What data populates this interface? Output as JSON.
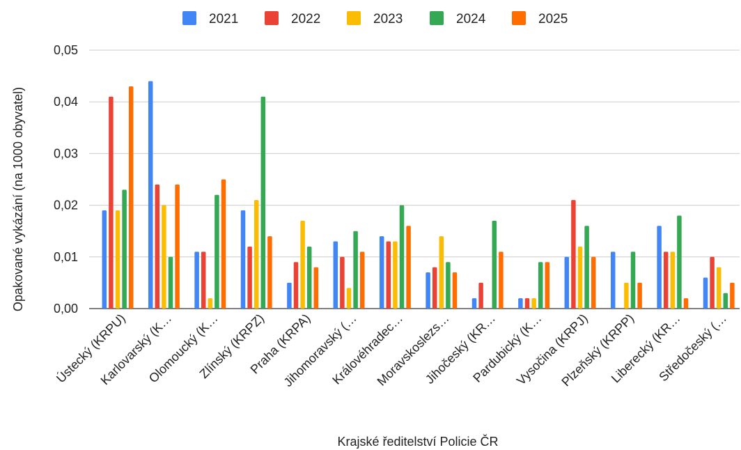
{
  "chart_data": {
    "type": "bar",
    "title": "",
    "xlabel": "Krajské ředitelství Policie ČR",
    "ylabel": "Opakované vykázání (na 1000 obyvatel)",
    "ylim": [
      0,
      0.05
    ],
    "yticks": [
      0,
      0.01,
      0.02,
      0.03,
      0.04,
      0.05
    ],
    "ytick_labels": [
      "0,00",
      "0,01",
      "0,02",
      "0,03",
      "0,04",
      "0,05"
    ],
    "grid": true,
    "legend_position": "top",
    "categories": [
      "Ústecký (KRPU)",
      "Karlovarský (K…",
      "Olomoucký (K…",
      "Zlínský (KRPZ)",
      "Praha (KRPA)",
      "Jihomoravský (…",
      "Královéhradec…",
      "Moravskoslezs…",
      "Jihočeský (KR…",
      "Pardubický (K…",
      "Vysočina (KRPJ)",
      "Plzeňský (KRPP)",
      "Liberecký (KR…",
      "Středočeský (…"
    ],
    "series": [
      {
        "name": "2021",
        "color": "#4285f4",
        "values": [
          0.019,
          0.044,
          0.011,
          0.019,
          0.005,
          0.013,
          0.014,
          0.007,
          0.002,
          0.002,
          0.01,
          0.011,
          0.016,
          0.006
        ]
      },
      {
        "name": "2022",
        "color": "#ea4335",
        "values": [
          0.041,
          0.024,
          0.011,
          0.012,
          0.009,
          0.01,
          0.013,
          0.008,
          0.005,
          0.002,
          0.021,
          0.0,
          0.011,
          0.01
        ]
      },
      {
        "name": "2023",
        "color": "#fbbc04",
        "values": [
          0.019,
          0.02,
          0.002,
          0.021,
          0.017,
          0.004,
          0.013,
          0.014,
          0.0,
          0.002,
          0.012,
          0.005,
          0.011,
          0.008
        ]
      },
      {
        "name": "2024",
        "color": "#34a853",
        "values": [
          0.023,
          0.01,
          0.022,
          0.041,
          0.012,
          0.015,
          0.02,
          0.009,
          0.017,
          0.009,
          0.016,
          0.011,
          0.018,
          0.003
        ]
      },
      {
        "name": "2025",
        "color": "#ff6d01",
        "values": [
          0.043,
          0.024,
          0.025,
          0.014,
          0.008,
          0.011,
          0.016,
          0.007,
          0.011,
          0.009,
          0.01,
          0.005,
          0.002,
          0.005
        ]
      }
    ]
  }
}
